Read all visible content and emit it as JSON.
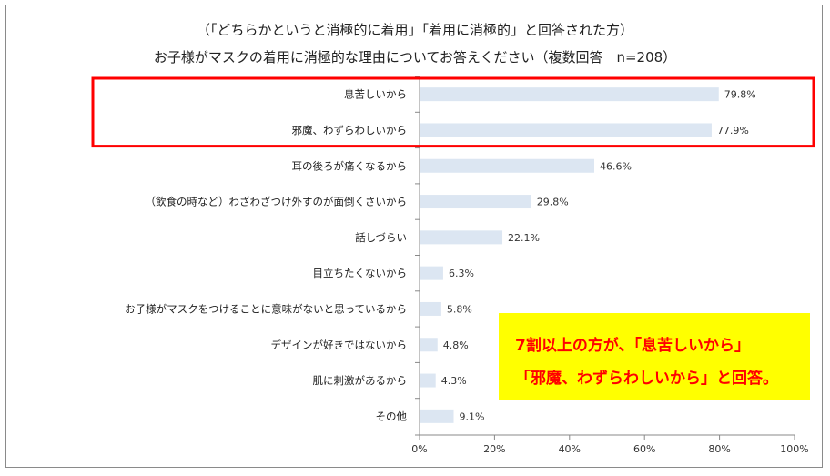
{
  "title_line1": "（「どちらかというと消極的に着用」「着用に消極的」と回答された方）",
  "title_line2": "お子様がマスクの着用に消極的な理由についてお答えください（複数回答　n=208）",
  "chart_data": {
    "type": "bar",
    "orientation": "horizontal",
    "categories": [
      "息苦しいから",
      "邪魔、わずらわしいから",
      "耳の後ろが痛くなるから",
      "（飲食の時など）わざわざつけ外すのが面倒くさいから",
      "話しづらい",
      "目立ちたくないから",
      "お子様がマスクをつけることに意味がないと思っているから",
      "デザインが好きではないから",
      "肌に刺激があるから",
      "その他"
    ],
    "values": [
      79.8,
      77.9,
      46.6,
      29.8,
      22.1,
      6.3,
      5.8,
      4.8,
      4.3,
      9.1
    ],
    "value_labels": [
      "79.8%",
      "77.9%",
      "46.6%",
      "29.8%",
      "22.1%",
      "6.3%",
      "5.8%",
      "4.8%",
      "4.3%",
      "9.1%"
    ],
    "xlim": [
      0,
      100
    ],
    "x_ticks": [
      "0%",
      "20%",
      "40%",
      "60%",
      "80%",
      "100%"
    ],
    "grid": false,
    "highlighted_categories": [
      0,
      1
    ],
    "colors": {
      "bar": "#dce6f2",
      "highlight_box": "#ff0000",
      "axis": "#888888"
    }
  },
  "callout": {
    "line1": "7割以上の方が、「息苦しいから」",
    "line2": "「邪魔、わずらわしいから」と回答。",
    "background": "#ffff00",
    "text_color": "#ff0000"
  }
}
